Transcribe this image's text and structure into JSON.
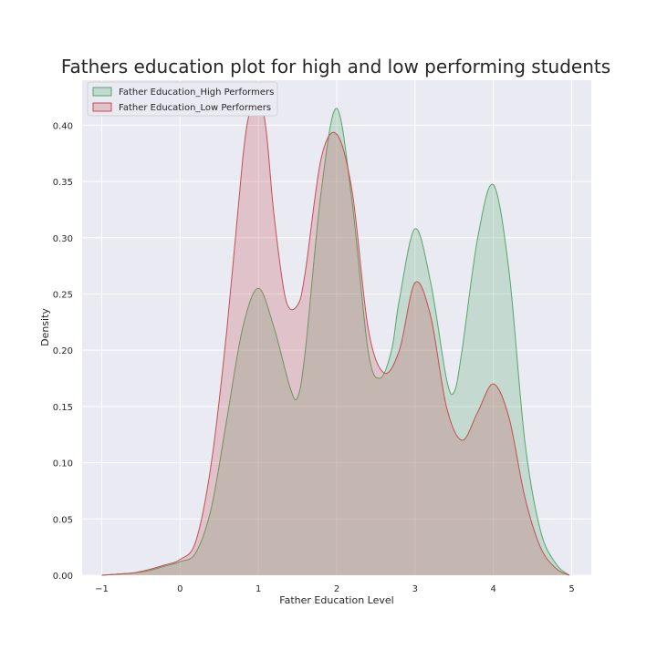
{
  "chart_data": {
    "type": "area",
    "title": "Fathers education plot for high and low performing students",
    "xlabel": "Father Education Level",
    "ylabel": "Density",
    "xlim": [
      -1.25,
      5.25
    ],
    "ylim": [
      0,
      0.44
    ],
    "xticks": [
      -1,
      0,
      1,
      2,
      3,
      4,
      5
    ],
    "xtick_labels": [
      "−1",
      "0",
      "1",
      "2",
      "3",
      "4",
      "5"
    ],
    "yticks": [
      0.0,
      0.05,
      0.1,
      0.15,
      0.2,
      0.25,
      0.3,
      0.35,
      0.4
    ],
    "ytick_labels": [
      "0.00",
      "0.05",
      "0.10",
      "0.15",
      "0.20",
      "0.25",
      "0.30",
      "0.35",
      "0.40"
    ],
    "grid": true,
    "legend_position": "top-left",
    "series": [
      {
        "name": "Father Education_High Performers",
        "color": "#55a868",
        "fill": "#55a868",
        "x": [
          -1.0,
          -0.8,
          -0.6,
          -0.4,
          -0.2,
          0.0,
          0.2,
          0.4,
          0.6,
          0.8,
          1.0,
          1.2,
          1.4,
          1.5,
          1.6,
          1.8,
          2.0,
          2.2,
          2.4,
          2.55,
          2.7,
          2.8,
          3.0,
          3.2,
          3.4,
          3.5,
          3.6,
          3.8,
          4.0,
          4.2,
          4.4,
          4.6,
          4.8,
          4.97
        ],
        "y": [
          0.0,
          0.001,
          0.002,
          0.004,
          0.008,
          0.012,
          0.02,
          0.06,
          0.14,
          0.22,
          0.255,
          0.22,
          0.168,
          0.158,
          0.2,
          0.34,
          0.415,
          0.33,
          0.2,
          0.175,
          0.2,
          0.245,
          0.308,
          0.26,
          0.175,
          0.163,
          0.2,
          0.3,
          0.347,
          0.27,
          0.12,
          0.04,
          0.01,
          0.0
        ]
      },
      {
        "name": "Father Education_Low Performers",
        "color": "#c44e52",
        "fill": "#c44e52",
        "x": [
          -1.0,
          -0.8,
          -0.6,
          -0.4,
          -0.2,
          0.0,
          0.2,
          0.4,
          0.6,
          0.8,
          0.9,
          1.0,
          1.1,
          1.2,
          1.35,
          1.5,
          1.6,
          1.8,
          2.0,
          2.2,
          2.4,
          2.6,
          2.8,
          3.0,
          3.2,
          3.4,
          3.6,
          3.8,
          4.0,
          4.2,
          4.4,
          4.6,
          4.8,
          4.97
        ],
        "y": [
          0.0,
          0.001,
          0.002,
          0.005,
          0.009,
          0.014,
          0.03,
          0.1,
          0.22,
          0.37,
          0.415,
          0.43,
          0.395,
          0.32,
          0.245,
          0.24,
          0.27,
          0.37,
          0.392,
          0.34,
          0.22,
          0.18,
          0.2,
          0.26,
          0.23,
          0.15,
          0.12,
          0.145,
          0.17,
          0.14,
          0.07,
          0.025,
          0.006,
          0.0
        ]
      }
    ]
  }
}
